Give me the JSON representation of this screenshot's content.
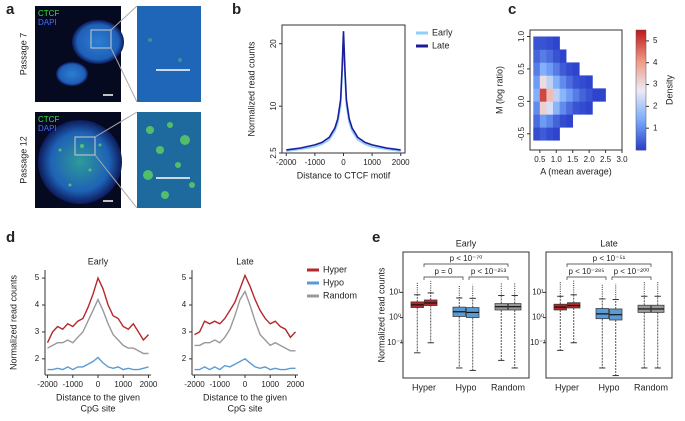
{
  "panel_labels": [
    "a",
    "b",
    "c",
    "d",
    "e"
  ],
  "micrographs": [
    {
      "label": "Passage 7",
      "stains": [
        "CTCF",
        "DAPI"
      ]
    },
    {
      "label": "Passage 12",
      "stains": [
        "CTCF",
        "DAPI"
      ]
    }
  ],
  "chart_data": [
    {
      "type": "line",
      "xlabel": "Distance to CTCF motif",
      "ylabel": "Normalized read counts",
      "x": [
        -2000,
        -1500,
        -1000,
        -750,
        -500,
        -300,
        -200,
        -100,
        -50,
        0,
        50,
        100,
        200,
        300,
        500,
        750,
        1000,
        1500,
        2000
      ],
      "xlim": [
        -2150,
        2150
      ],
      "xticks": [
        -2000,
        -1000,
        0,
        1000,
        2000
      ],
      "ylim": [
        2.5,
        23
      ],
      "yticks": [
        2.5,
        10,
        20
      ],
      "series": [
        {
          "name": "Early",
          "color": "#8fd0f5",
          "values": [
            2.8,
            3.1,
            3.5,
            3.9,
            4.6,
            6,
            7.3,
            10,
            15,
            21,
            15,
            10,
            7.3,
            6,
            4.6,
            3.9,
            3.5,
            3.1,
            2.8
          ]
        },
        {
          "name": "Late",
          "color": "#1c1c9c",
          "values": [
            3.0,
            3.3,
            3.8,
            4.2,
            5.0,
            6.5,
            8,
            11,
            16,
            22,
            16,
            11,
            8,
            6.5,
            5.0,
            4.2,
            3.8,
            3.3,
            3.0
          ]
        }
      ]
    },
    {
      "type": "heatmap",
      "xlabel": "A (mean average)",
      "ylabel": "M (log ratio)",
      "xlim": [
        0.2,
        3.0
      ],
      "xticks": [
        0.5,
        {
          "value": 1,
          "label": "1.0"
        },
        1.5,
        {
          "value": 2,
          "label": "2.0"
        },
        2.5,
        {
          "value": 3,
          "label": "3.0"
        }
      ],
      "ylim": [
        -0.75,
        1.1
      ],
      "yticks": [
        -0.5,
        {
          "value": 0,
          "label": "0.0"
        },
        0.5,
        {
          "value": 1,
          "label": "1.0"
        }
      ],
      "xbins": [
        0.3,
        0.5,
        0.7,
        0.9,
        1.1,
        1.3,
        1.5,
        1.7,
        1.9,
        2.1,
        2.3,
        2.5
      ],
      "ybins": [
        -0.6,
        -0.4,
        -0.2,
        0,
        0.2,
        0.4,
        0.6,
        0.8,
        1.0
      ],
      "density": [
        [
          0.2,
          0.4,
          0.2,
          0.1,
          null,
          null,
          null,
          null,
          null,
          null,
          null
        ],
        [
          0.6,
          1.2,
          0.9,
          0.5,
          0.2,
          0.1,
          null,
          null,
          null,
          null,
          null
        ],
        [
          1.0,
          3.2,
          2.5,
          1.6,
          1.0,
          0.6,
          0.3,
          0.2,
          0.1,
          null,
          null
        ],
        [
          1.5,
          5.0,
          3.5,
          2.2,
          1.6,
          1.2,
          0.8,
          0.5,
          0.3,
          0.1,
          0.1
        ],
        [
          1.2,
          3.0,
          2.2,
          1.5,
          1.0,
          0.6,
          0.3,
          0.2,
          0.1,
          null,
          null
        ],
        [
          0.8,
          1.5,
          1.2,
          0.8,
          0.4,
          0.2,
          0.1,
          null,
          null,
          null,
          null
        ],
        [
          0.5,
          0.8,
          0.6,
          0.3,
          0.1,
          null,
          null,
          null,
          null,
          null,
          null
        ],
        [
          0.3,
          0.3,
          0.2,
          0.1,
          null,
          null,
          null,
          null,
          null,
          null,
          null
        ]
      ],
      "clim": [
        0,
        5.5
      ],
      "cticks": [
        1,
        2,
        3,
        4,
        5
      ],
      "clabel": "Density"
    },
    {
      "type": "line",
      "xlabel": [
        "Distance to the given",
        "CpG site"
      ],
      "ylabel": "Normalized read counts",
      "x": [
        -2000,
        -1800,
        -1600,
        -1400,
        -1200,
        -1000,
        -800,
        -600,
        -400,
        -200,
        0,
        200,
        400,
        600,
        800,
        1000,
        1200,
        1400,
        1600,
        1800,
        2000
      ],
      "xlim": [
        -2100,
        2100
      ],
      "xticks": [
        -2000,
        -1000,
        0,
        1000,
        2000
      ],
      "ylim": [
        1.4,
        5.3
      ],
      "yticks": [
        2,
        3,
        4,
        5
      ],
      "series": [
        {
          "name": "Hyper",
          "color": "#b5282a"
        },
        {
          "name": "Hypo",
          "color": "#5b9bd5"
        },
        {
          "name": "Random",
          "color": "#999999"
        }
      ],
      "facets": [
        {
          "title": "Early",
          "values": [
            [
              2.6,
              3.0,
              3.2,
              3.1,
              3.3,
              3.2,
              3.4,
              3.5,
              3.9,
              4.4,
              5.0,
              4.6,
              4.0,
              3.6,
              3.5,
              3.2,
              3.1,
              3.3,
              3.0,
              2.7,
              2.9
            ],
            [
              1.6,
              1.6,
              1.65,
              1.6,
              1.7,
              1.6,
              1.7,
              1.7,
              1.8,
              1.9,
              2.05,
              1.85,
              1.7,
              1.65,
              1.7,
              1.6,
              1.65,
              1.6,
              1.6,
              1.65,
              1.7
            ],
            [
              2.4,
              2.5,
              2.6,
              2.6,
              2.7,
              2.6,
              2.8,
              3.0,
              3.4,
              3.8,
              4.2,
              3.8,
              3.3,
              2.9,
              2.7,
              2.5,
              2.4,
              2.4,
              2.3,
              2.2,
              2.2
            ]
          ]
        },
        {
          "title": "Late",
          "values": [
            [
              2.9,
              3.0,
              3.4,
              3.3,
              3.4,
              3.3,
              3.5,
              3.8,
              4.1,
              4.6,
              5.1,
              4.7,
              4.2,
              3.8,
              3.5,
              3.3,
              3.4,
              3.2,
              3.1,
              2.8,
              3.0
            ],
            [
              1.6,
              1.6,
              1.7,
              1.6,
              1.7,
              1.6,
              1.75,
              1.7,
              1.8,
              1.9,
              2.0,
              1.85,
              1.7,
              1.65,
              1.7,
              1.6,
              1.65,
              1.6,
              1.6,
              1.65,
              1.65
            ],
            [
              2.5,
              2.5,
              2.6,
              2.6,
              2.7,
              2.6,
              2.8,
              3.1,
              3.6,
              4.2,
              4.5,
              4.0,
              3.4,
              2.9,
              2.7,
              2.5,
              2.6,
              2.5,
              2.4,
              2.3,
              2.3
            ]
          ]
        }
      ]
    },
    {
      "type": "box",
      "ylabel": "Normalized read counts",
      "categories": [
        "Hyper",
        "Hypo",
        "Random"
      ],
      "colors": [
        "#b5282a",
        "#5b9bd5",
        "#999999"
      ],
      "log": true,
      "ylim": [
        0.004,
        400
      ],
      "yticks": [
        {
          "value": 0.1,
          "label": "10⁻¹"
        },
        {
          "value": 1,
          "label": "10⁰"
        },
        {
          "value": 10,
          "label": "10¹"
        }
      ],
      "facets": [
        {
          "title": "Early",
          "pvalues": [
            "p < 10⁻⁷⁰",
            "p = 0",
            "p < 10⁻²⁵³"
          ],
          "boxes": [
            [
              {
                "low": 0.04,
                "q1": 2.5,
                "median": 3.2,
                "q3": 4.2,
                "high": 8,
                "max": 25
              },
              {
                "low": 0.1,
                "q1": 3,
                "median": 3.8,
                "q3": 5,
                "high": 9.5,
                "max": 28
              }
            ],
            [
              {
                "low": 0.01,
                "q1": 1.1,
                "median": 1.7,
                "q3": 2.6,
                "high": 6,
                "max": 20
              },
              {
                "low": 0.008,
                "q1": 1.0,
                "median": 1.6,
                "q3": 2.5,
                "high": 5.8,
                "max": 20
              }
            ],
            [
              {
                "low": 0.02,
                "q1": 2.0,
                "median": 2.7,
                "q3": 3.6,
                "high": 7.5,
                "max": 25
              },
              {
                "low": 0.01,
                "q1": 2.0,
                "median": 2.7,
                "q3": 3.6,
                "high": 7.5,
                "max": 25
              }
            ]
          ]
        },
        {
          "title": "Late",
          "pvalues": [
            "p < 10⁻⁵¹",
            "p < 10⁻²⁸⁵",
            "p < 10⁻²⁰⁰"
          ],
          "boxes": [
            [
              {
                "low": 0.05,
                "q1": 2.0,
                "median": 2.6,
                "q3": 3.4,
                "high": 7,
                "max": 28
              },
              {
                "low": 0.1,
                "q1": 2.4,
                "median": 3.0,
                "q3": 3.9,
                "high": 8,
                "max": 30
              }
            ],
            [
              {
                "low": 0.01,
                "q1": 0.9,
                "median": 1.4,
                "q3": 2.3,
                "high": 5.5,
                "max": 22
              },
              {
                "low": 0.005,
                "q1": 0.8,
                "median": 1.3,
                "q3": 2.2,
                "high": 5.2,
                "max": 22
              }
            ],
            [
              {
                "low": 0.01,
                "q1": 1.6,
                "median": 2.2,
                "q3": 3.1,
                "high": 7,
                "max": 26
              },
              {
                "low": 0.01,
                "q1": 1.6,
                "median": 2.2,
                "q3": 3.1,
                "high": 7,
                "max": 26
              }
            ]
          ]
        }
      ]
    }
  ]
}
